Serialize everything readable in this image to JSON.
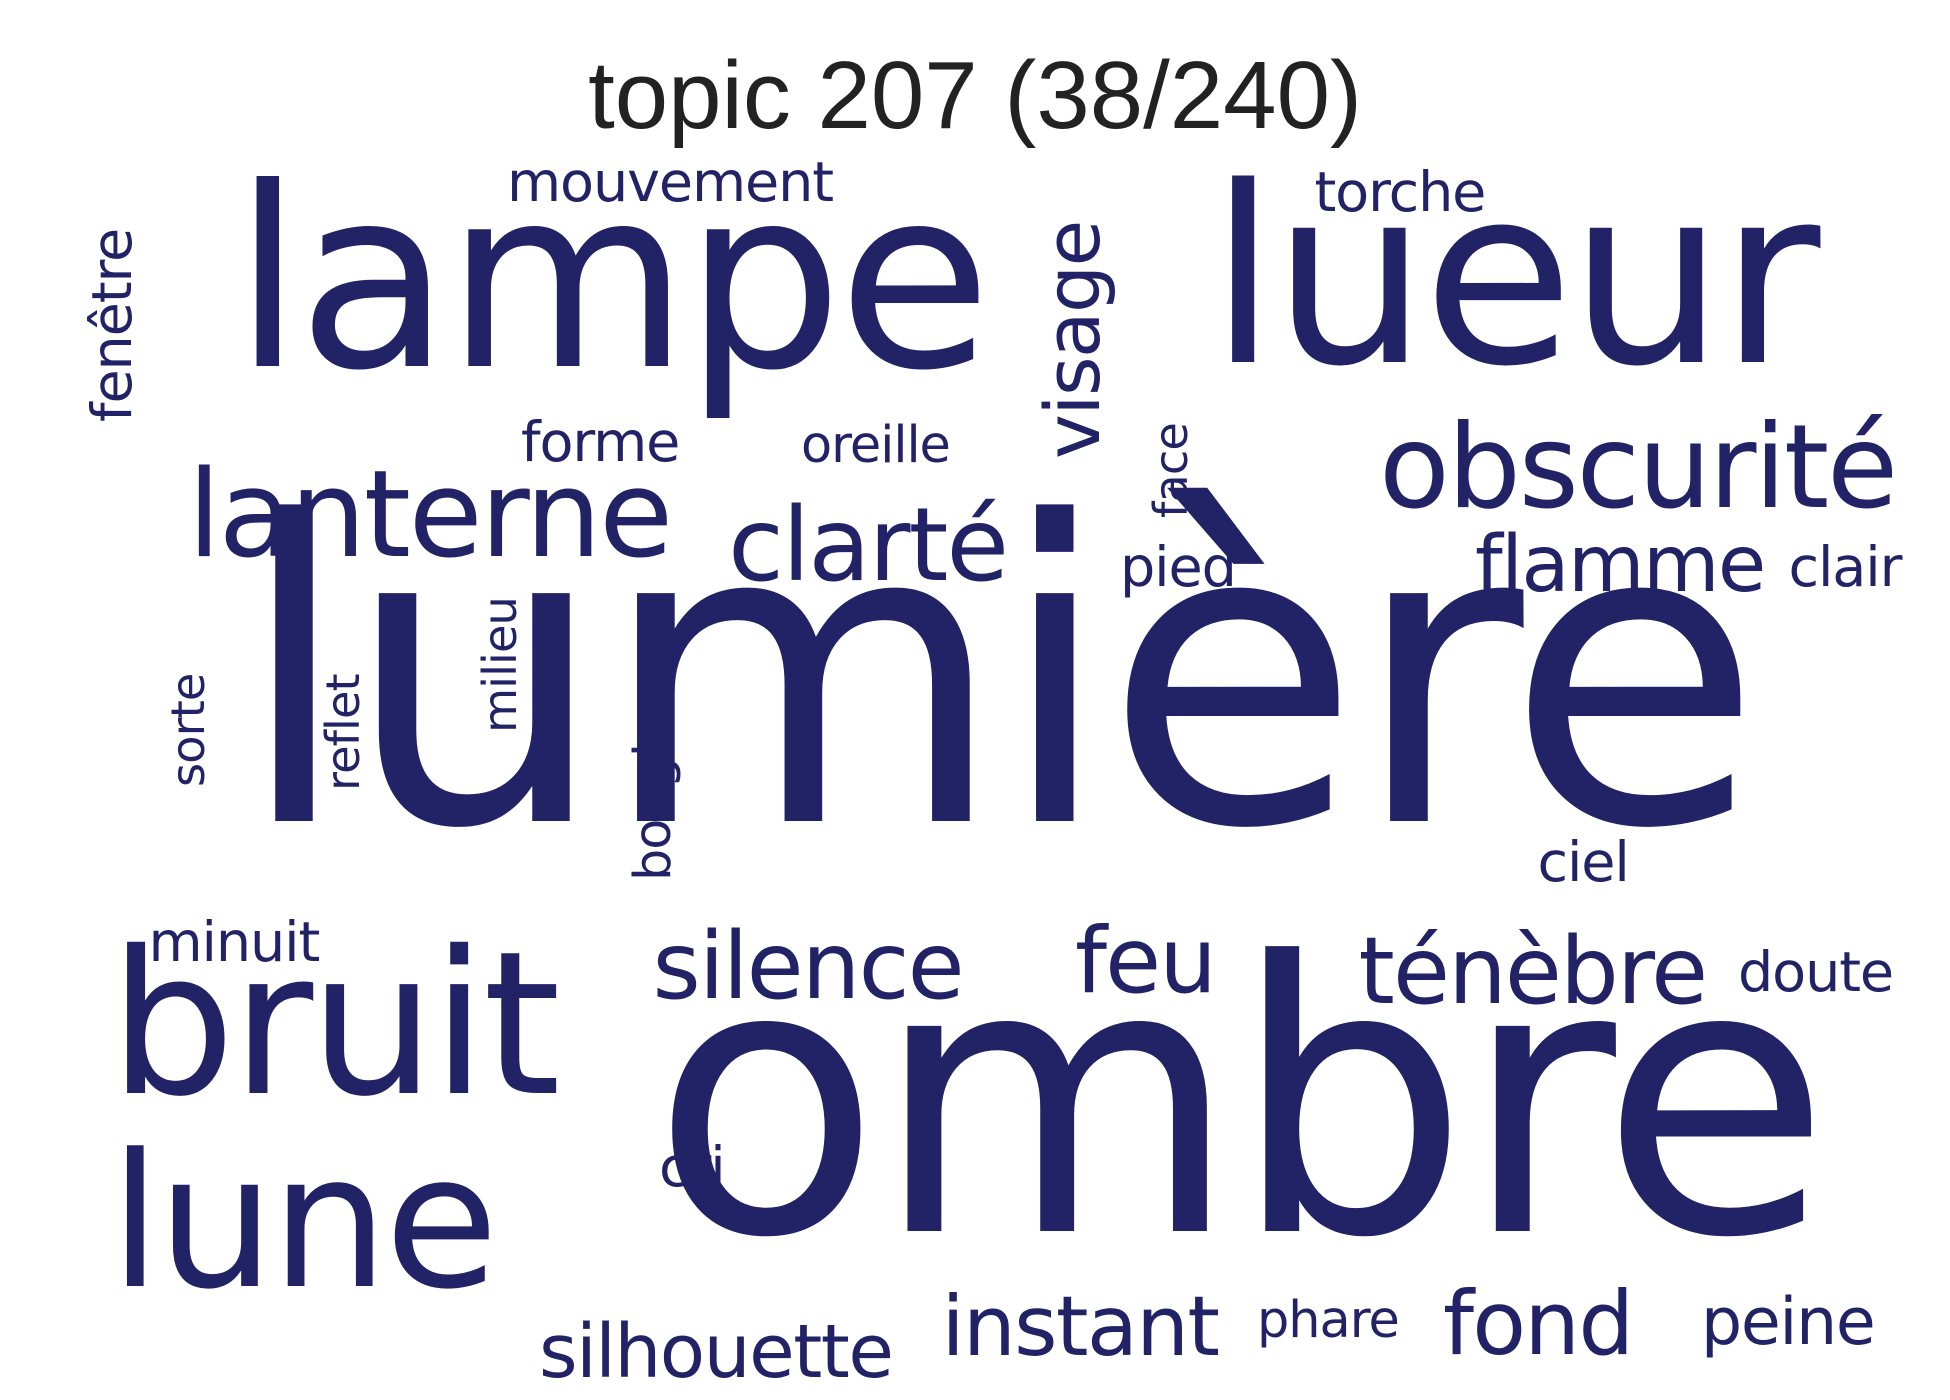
{
  "title": "topic 207 (38/240)",
  "word_color": "#222266",
  "words": [
    "lumière",
    "ombre",
    "lampe",
    "lueur",
    "bruit",
    "lune",
    "obscurité",
    "lanterne",
    "clarté",
    "silence",
    "ténèbre",
    "feu",
    "instant",
    "fond",
    "flamme",
    "visage",
    "silhouette",
    "mouvement",
    "forme",
    "oreille",
    "reflet",
    "fenêtre",
    "peine",
    "torche",
    "phare",
    "doute",
    "clair",
    "pied",
    "milieu",
    "bougie",
    "ciel",
    "minuit",
    "cri",
    "sorte",
    "face"
  ]
}
